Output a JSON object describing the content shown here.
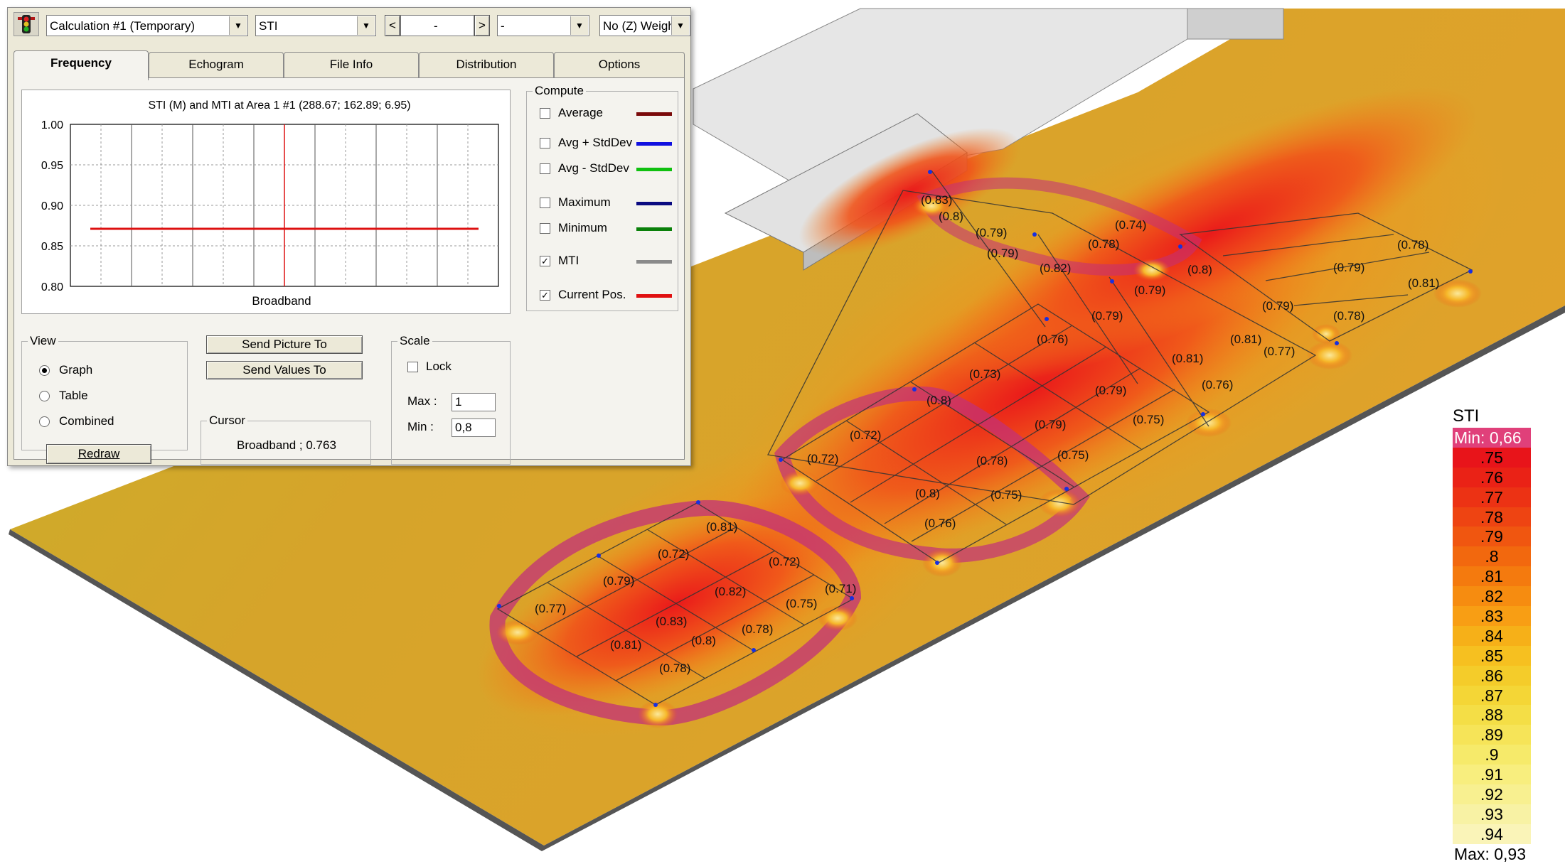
{
  "toolbar": {
    "calculation": "Calculation #1 (Temporary)",
    "parameter": "STI",
    "nav_left": "<",
    "nav_value": "-",
    "nav_right": ">",
    "band": "-",
    "weighting": "No (Z) Weigh"
  },
  "tabs": [
    "Frequency",
    "Echogram",
    "File Info",
    "Distribution",
    "Options"
  ],
  "graph": {
    "title": "STI (M) and MTI at Area 1 #1  (288.67; 162.89; 6.95)",
    "xlabel": "Broadband",
    "y_ticks": [
      "1.00",
      "0.95",
      "0.90",
      "0.85",
      "0.80"
    ]
  },
  "chart_data": {
    "type": "line",
    "x": [
      "Broadband"
    ],
    "series": [
      {
        "name": "MTI",
        "values": [
          0.871
        ]
      }
    ],
    "ylim": [
      0.8,
      1.0
    ],
    "grid": true,
    "colors": {
      "mti": "#dd1010",
      "cursor": "#dd1010"
    }
  },
  "compute": {
    "title": "Compute",
    "items": [
      {
        "label": "Average",
        "checked": false,
        "color": "#7a0a0a"
      },
      {
        "label": "Avg + StdDev",
        "checked": false,
        "color": "#1010e0"
      },
      {
        "label": "Avg - StdDev",
        "checked": false,
        "color": "#10c010"
      },
      {
        "label": "Maximum",
        "checked": false,
        "color": "#0a0a80"
      },
      {
        "label": "Minimum",
        "checked": false,
        "color": "#0a800a"
      },
      {
        "label": "MTI",
        "checked": true,
        "color": "#8a8a8a"
      },
      {
        "label": "Current Pos.",
        "checked": true,
        "color": "#e01010"
      }
    ]
  },
  "view": {
    "title": "View",
    "options": [
      {
        "label": "Graph",
        "selected": true
      },
      {
        "label": "Table",
        "selected": false
      },
      {
        "label": "Combined",
        "selected": false
      }
    ],
    "redraw": "Redraw"
  },
  "actions": {
    "send_picture": "Send Picture To",
    "send_values": "Send Values To"
  },
  "cursor": {
    "title": "Cursor",
    "value": "Broadband ; 0.763"
  },
  "scale": {
    "title": "Scale",
    "lock": "Lock",
    "max_label": "Max :",
    "max": "1",
    "min_label": "Min :",
    "min": "0,8"
  },
  "colorscale": {
    "title": "STI",
    "labels": [
      "Min: 0,66",
      ".75",
      ".76",
      ".77",
      ".78",
      ".79",
      ".8",
      ".81",
      ".82",
      ".83",
      ".84",
      ".85",
      ".86",
      ".87",
      ".88",
      ".89",
      ".9",
      ".91",
      ".92",
      ".93",
      ".94",
      "Max: 0,93"
    ],
    "colors": [
      "#e0407a",
      "#e8141a",
      "#ea2216",
      "#ec3214",
      "#ee4412",
      "#f05610",
      "#f2680e",
      "#f47a0e",
      "#f68c10",
      "#f89e14",
      "#f6b018",
      "#f6c020",
      "#f4cc2a",
      "#f4d636",
      "#f4de46",
      "#f6e458",
      "#f6ea6a",
      "#f8ee7e",
      "#f8f090",
      "#f8f2a4",
      "#faf4b8",
      "#f0eabc"
    ]
  },
  "area_values": [
    "(0.83)",
    "(0.8)",
    "(0.79)",
    "(0.79)",
    "(0.82)",
    "(0.78)",
    "(0.74)",
    "(0.8)",
    "(0.79)",
    "(0.79)",
    "(0.78)",
    "(0.79)",
    "(0.81)",
    "(0.79)",
    "(0.78)",
    "(0.76)",
    "(0.81)",
    "(0.81)",
    "(0.77)",
    "(0.73)",
    "(0.79)",
    "(0.76)",
    "(0.8)",
    "(0.79)",
    "(0.75)",
    "(0.72)",
    "(0.72)",
    "(0.78)",
    "(0.75)",
    "(0.8)",
    "(0.75)",
    "(0.76)",
    "(0.81)",
    "(0.72)",
    "(0.72)",
    "(0.79)",
    "(0.82)",
    "(0.71)",
    "(0.77)",
    "(0.83)",
    "(0.78)",
    "(0.75)",
    "(0.81)",
    "(0.8)",
    "(0.78)"
  ]
}
